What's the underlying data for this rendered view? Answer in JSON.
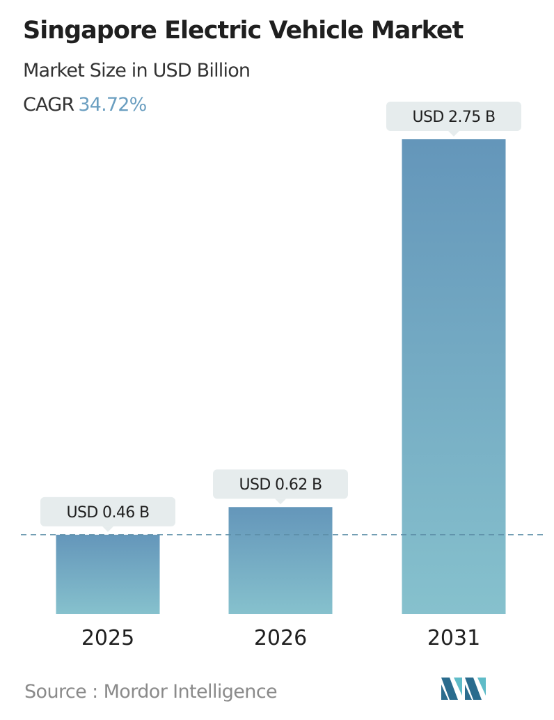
{
  "header": {
    "title": "Singapore Electric Vehicle Market",
    "subtitle": "Market Size in USD Billion",
    "cagr_label": "CAGR",
    "cagr_value": "34.72%"
  },
  "footer": {
    "source_text": "Source :  Mordor Intelligence",
    "logo_icon": "mordor-intelligence-logo-icon"
  },
  "colors": {
    "bar_top": "#6496ba",
    "bar_bottom": "#86c1cd",
    "label_bg": "#e6eced",
    "reference_line": "#5b8da6",
    "cagr_accent": "#6a9ec0",
    "logo_dark": "#2a6c8e",
    "logo_light": "#5fbcc8"
  },
  "chart_data": {
    "type": "bar",
    "categories": [
      "2025",
      "2026",
      "2031"
    ],
    "values": [
      0.46,
      0.62,
      2.75
    ],
    "value_labels": [
      "USD 0.46 B",
      "USD 0.62 B",
      "USD 2.75 B"
    ],
    "unit": "USD Billion",
    "grid": false,
    "reference_line": "dashed line at 2025 value",
    "ylim": [
      0,
      2.75
    ]
  }
}
